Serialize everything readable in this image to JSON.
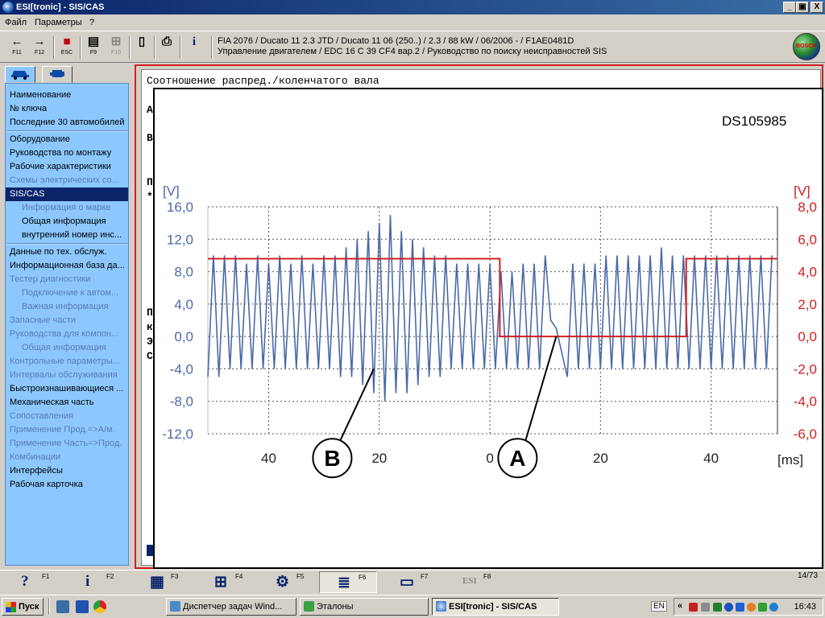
{
  "window": {
    "title": "ESI[tronic] - SIS/CAS",
    "min": "_",
    "max": "▣",
    "close": "X"
  },
  "menu": [
    "Файл",
    "Параметры",
    "?"
  ],
  "toolbar": {
    "buttons": [
      {
        "glyph": "←",
        "key": "F11"
      },
      {
        "glyph": "→",
        "key": "F12"
      },
      {
        "glyph": "■",
        "key": "ESC"
      },
      {
        "glyph": "▤",
        "key": "F9"
      },
      {
        "glyph": "⊞",
        "key": "F10"
      },
      {
        "glyph": "▯",
        "key": ""
      },
      {
        "glyph": "⎙",
        "key": ""
      },
      {
        "glyph": "i",
        "key": ""
      }
    ],
    "vehicle_line1": "FIA 2076 / Ducato 11 2.3 JTD / Ducato 11 06 (250..) / 2.3 / 88 kW / 06/2006 -  / F1AE0481D",
    "vehicle_line2": "Управление двигателем / EDC 16 C 39 CF4 вар.2 / Руководство по поиску неисправностей SIS",
    "logo": "BOSCH"
  },
  "sidebar": {
    "tabs": [
      "car-icon",
      "engine-icon"
    ],
    "items": [
      {
        "label": "Наименование",
        "state": "enabled"
      },
      {
        "label": "№ ключа",
        "state": "enabled"
      },
      {
        "label": "Последние 30 автомобилей",
        "state": "enabled"
      },
      {
        "label": "Оборудование",
        "state": "enabled"
      },
      {
        "label": "Руководства по монтажу",
        "state": "enabled"
      },
      {
        "label": "Рабочие характеристики",
        "state": "enabled"
      },
      {
        "label": "Схемы электрических со...",
        "state": "disabled"
      },
      {
        "label": "SIS/CAS",
        "state": "selected"
      },
      {
        "label": "Информация о марке",
        "state": "disabled-sub"
      },
      {
        "label": "Общая информация",
        "state": "sub"
      },
      {
        "label": "внутренний номер инс...",
        "state": "sub"
      },
      {
        "label": "Данные по тех. обслуж.",
        "state": "enabled"
      },
      {
        "label": "Информационная база да...",
        "state": "enabled"
      },
      {
        "label": "Тестер диагностики",
        "state": "disabled"
      },
      {
        "label": "Подключение к автом...",
        "state": "disabled-sub"
      },
      {
        "label": "Важная информация",
        "state": "disabled-sub"
      },
      {
        "label": "Запасные части",
        "state": "disabled"
      },
      {
        "label": "Руководства для компон...",
        "state": "disabled"
      },
      {
        "label": "Общая информация",
        "state": "disabled-sub"
      },
      {
        "label": "Контрольные параметры...",
        "state": "disabled"
      },
      {
        "label": "Интервалы обслуживания",
        "state": "disabled"
      },
      {
        "label": "Быстроизнашивающиеся ...",
        "state": "enabled"
      },
      {
        "label": "Механическая часть",
        "state": "enabled"
      },
      {
        "label": "Сопоставления",
        "state": "disabled"
      },
      {
        "label": "Применение Прод.=>А/м.",
        "state": "disabled"
      },
      {
        "label": "Применение Часть=>Прод.",
        "state": "disabled"
      },
      {
        "label": "Комбинации",
        "state": "disabled"
      },
      {
        "label": "Интерфейсы",
        "state": "enabled"
      },
      {
        "label": "Рабочая карточка",
        "state": "enabled"
      }
    ]
  },
  "document": {
    "title": "Соотношение распред./коленчатого вала",
    "side_letters": [
      "А",
      "В",
      "П",
      "*",
      "П",
      "к",
      "Э",
      "С"
    ],
    "figure_id": "DS105985"
  },
  "chart_data": {
    "type": "line",
    "title": "",
    "y_left": {
      "unit": "[V]",
      "ylim": [
        -12,
        16
      ],
      "ticks": [
        "16,0",
        "12,0",
        "8,0",
        "4,0",
        "0,0",
        "-4,0",
        "-8,0",
        "-12,0"
      ]
    },
    "y_right": {
      "unit": "[V]",
      "ylim": [
        -6,
        8
      ],
      "ticks": [
        "8,0",
        "6,0",
        "4,0",
        "2,0",
        "0,0",
        "-2,0",
        "-4,0",
        "-6,0"
      ]
    },
    "x_axis": {
      "unit": "[ms]",
      "tick_labels": [
        "40",
        "20",
        "0",
        "20",
        "40"
      ],
      "tick_positions_ms": [
        -40,
        -20,
        0,
        20,
        40
      ],
      "xlim": [
        -51,
        52
      ]
    },
    "grid": true,
    "series": [
      {
        "name": "",
        "axis": "left",
        "color": "#4a6aa8",
        "style": "oscillating signal",
        "points": [
          [
            -51,
            -5
          ],
          [
            -50,
            10
          ],
          [
            -49,
            -5
          ],
          [
            -48,
            10
          ],
          [
            -47,
            -4
          ],
          [
            -46,
            10
          ],
          [
            -45,
            -4
          ],
          [
            -44,
            9
          ],
          [
            -43,
            -4
          ],
          [
            -42,
            10
          ],
          [
            -41,
            -4
          ],
          [
            -40,
            9
          ],
          [
            -39,
            -4
          ],
          [
            -38,
            10
          ],
          [
            -37,
            -4
          ],
          [
            -36,
            9
          ],
          [
            -35,
            -4
          ],
          [
            -34,
            10
          ],
          [
            -33,
            -4
          ],
          [
            -32,
            9
          ],
          [
            -31,
            -4
          ],
          [
            -30,
            10
          ],
          [
            -29,
            -4
          ],
          [
            -28,
            10
          ],
          [
            -27,
            -5
          ],
          [
            -26,
            11
          ],
          [
            -25,
            -5
          ],
          [
            -24,
            12
          ],
          [
            -23,
            -6
          ],
          [
            -22,
            13
          ],
          [
            -21,
            -7
          ],
          [
            -20,
            14
          ],
          [
            -19,
            -8
          ],
          [
            -18,
            15
          ],
          [
            -17,
            -7
          ],
          [
            -16,
            13
          ],
          [
            -15,
            -7
          ],
          [
            -14,
            12
          ],
          [
            -13,
            -6
          ],
          [
            -12,
            11
          ],
          [
            -11,
            -5
          ],
          [
            -10,
            10
          ],
          [
            -9,
            -5
          ],
          [
            -8,
            10
          ],
          [
            -7,
            -4
          ],
          [
            -6,
            9
          ],
          [
            -5,
            -4
          ],
          [
            -4,
            9
          ],
          [
            -3,
            -4
          ],
          [
            -2,
            9
          ],
          [
            -1,
            -4
          ],
          [
            0,
            9
          ],
          [
            1,
            -4
          ],
          [
            2,
            8
          ],
          [
            3,
            -4
          ],
          [
            4,
            8
          ],
          [
            5,
            -4
          ],
          [
            6,
            9
          ],
          [
            7,
            -4
          ],
          [
            8,
            9
          ],
          [
            9,
            -4
          ],
          [
            10,
            10
          ],
          [
            11,
            2
          ],
          [
            12,
            1
          ],
          [
            13,
            -2
          ],
          [
            14,
            -5
          ],
          [
            15,
            9
          ],
          [
            16,
            -4
          ],
          [
            17,
            9
          ],
          [
            18,
            -4
          ],
          [
            19,
            9
          ],
          [
            20,
            -4
          ],
          [
            21,
            10
          ],
          [
            22,
            -4
          ],
          [
            23,
            10
          ],
          [
            24,
            -4
          ],
          [
            25,
            10
          ],
          [
            26,
            -4
          ],
          [
            27,
            10
          ],
          [
            28,
            -4
          ],
          [
            29,
            10
          ],
          [
            30,
            -4
          ],
          [
            31,
            11
          ],
          [
            32,
            -4
          ],
          [
            33,
            10
          ],
          [
            34,
            -4
          ],
          [
            35,
            10
          ],
          [
            36,
            -4
          ],
          [
            37,
            10
          ],
          [
            38,
            -4
          ],
          [
            39,
            10
          ],
          [
            40,
            -4
          ],
          [
            41,
            10
          ],
          [
            42,
            -4
          ],
          [
            43,
            10
          ],
          [
            44,
            -4
          ],
          [
            45,
            10
          ],
          [
            46,
            -4
          ],
          [
            47,
            10
          ],
          [
            48,
            -4
          ],
          [
            49,
            10
          ],
          [
            50,
            -4
          ],
          [
            51,
            10
          ]
        ]
      },
      {
        "name": "",
        "axis": "right",
        "color": "#d02020",
        "style": "square",
        "points": [
          [
            -51,
            4.8
          ],
          [
            1.8,
            4.8
          ],
          [
            1.8,
            0
          ],
          [
            35.5,
            0
          ],
          [
            35.5,
            4.8
          ],
          [
            52,
            4.8
          ]
        ]
      }
    ],
    "annotations": [
      {
        "label": "B",
        "target": [
          -21,
          -4
        ],
        "callout_at": [
          -28.5,
          -15
        ]
      },
      {
        "label": "A",
        "target": [
          12,
          0
        ],
        "callout_at": [
          5,
          -15
        ]
      }
    ]
  },
  "fn_bar": {
    "keys": [
      {
        "glyph": "?",
        "key": "F1",
        "icon": "help-icon"
      },
      {
        "glyph": "i",
        "key": "F2",
        "icon": "info-icon"
      },
      {
        "glyph": "▦",
        "key": "F3",
        "icon": "component-icon"
      },
      {
        "glyph": "⊞",
        "key": "F4",
        "icon": "diagram-icon"
      },
      {
        "glyph": "⚙",
        "key": "F5",
        "icon": "test-icon"
      },
      {
        "glyph": "≣",
        "key": "F6",
        "icon": "document-icon"
      },
      {
        "glyph": "▭",
        "key": "F7",
        "icon": "car-icon"
      },
      {
        "glyph": "ESI",
        "key": "F8",
        "icon": "esi-icon"
      }
    ],
    "page": "14/73"
  },
  "taskbar": {
    "start": "Пуск",
    "tasks": [
      "Диспетчер задач Wind...",
      "Эталоны",
      "ESI[tronic] - SIS/CAS"
    ],
    "lang": "EN",
    "tray_arrow": "«",
    "time": "16:43"
  }
}
